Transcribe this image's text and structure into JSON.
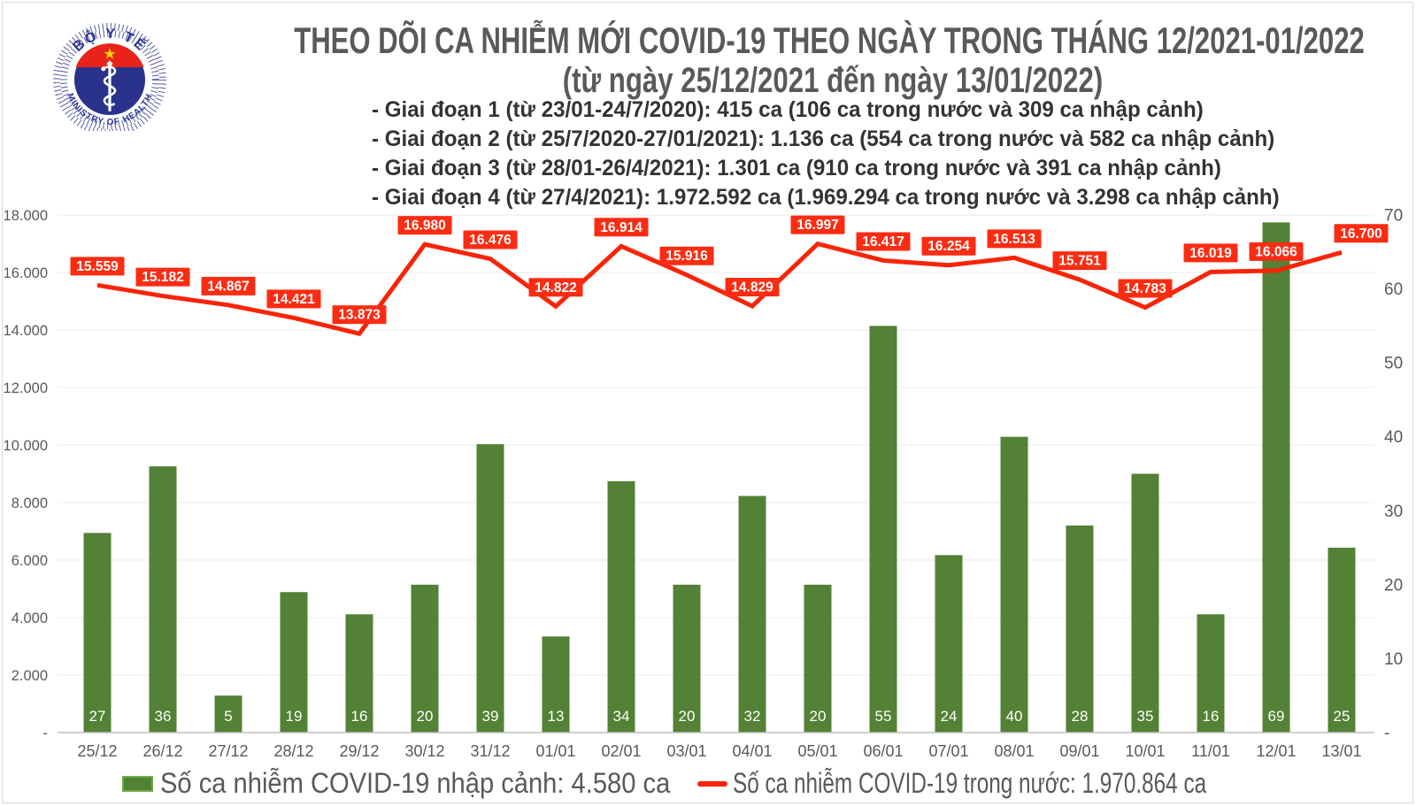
{
  "logo": {
    "top_text": "BỘ Y TẾ",
    "bottom_text": "MINISTRY OF HEALTH"
  },
  "title": "THEO DÕI CA NHIỄM MỚI COVID-19 THEO NGÀY TRONG THÁNG 12/2021-01/2022",
  "subtitle": "(từ ngày 25/12/2021 đến ngày 13/01/2022)",
  "phases": [
    "- Giai đoạn 1 (từ 23/01-24/7/2020): 415 ca (106 ca trong nước và 309 ca nhập cảnh)",
    "- Giai đoạn 2 (từ 25/7/2020-27/01/2021): 1.136 ca (554 ca trong nước và 582 ca nhập cảnh)",
    "- Giai đoạn 3 (từ 28/01-26/4/2021): 1.301 ca (910 ca trong nước và 391 ca nhập cảnh)",
    "- Giai đoạn 4 (từ 27/4/2021): 1.972.592 ca (1.969.294 ca trong nước và 3.298 ca nhập cảnh)"
  ],
  "chart_data": {
    "type": "bar+line combo",
    "categories": [
      "25/12",
      "26/12",
      "27/12",
      "28/12",
      "29/12",
      "30/12",
      "31/12",
      "01/01",
      "02/01",
      "03/01",
      "04/01",
      "05/01",
      "06/01",
      "07/01",
      "08/01",
      "09/01",
      "10/01",
      "11/01",
      "12/01",
      "13/01"
    ],
    "series": [
      {
        "name": "Số ca nhiễm COVID-19 nhập cảnh",
        "type": "bar",
        "axis": "right",
        "color": "#538135",
        "values": [
          27,
          36,
          5,
          19,
          16,
          20,
          39,
          13,
          34,
          20,
          32,
          20,
          55,
          24,
          40,
          28,
          35,
          16,
          69,
          25
        ],
        "point_labels": [
          "27",
          "36",
          "5",
          "19",
          "16",
          "20",
          "39",
          "13",
          "34",
          "20",
          "32",
          "20",
          "55",
          "24",
          "40",
          "28",
          "35",
          "16",
          "69",
          "25"
        ]
      },
      {
        "name": "Số ca nhiễm COVID-19 trong nước",
        "type": "line",
        "axis": "left",
        "color": "#f92408",
        "label_bg": "#fc2c13",
        "values": [
          15559,
          15182,
          14867,
          14421,
          13873,
          16980,
          16476,
          14822,
          16914,
          15916,
          14829,
          16997,
          16417,
          16254,
          16513,
          15751,
          14783,
          16019,
          16066,
          16700
        ],
        "point_labels": [
          "15.559",
          "15.182",
          "14.867",
          "14.421",
          "13.873",
          "16.980",
          "16.476",
          "14.822",
          "16.914",
          "15.916",
          "14.829",
          "16.997",
          "16.417",
          "16.254",
          "16.513",
          "15.751",
          "14.783",
          "16.019",
          "16.066",
          "16.700"
        ]
      }
    ],
    "left_axis": {
      "min": 0,
      "max": 18000,
      "step": 2000,
      "tick_labels": [
        "-",
        "2.000",
        "4.000",
        "6.000",
        "8.000",
        "10.000",
        "12.000",
        "14.000",
        "16.000",
        "18.000"
      ]
    },
    "right_axis": {
      "min": 0,
      "max": 70,
      "step": 10,
      "tick_labels": [
        "-",
        "10",
        "20",
        "30",
        "40",
        "50",
        "60",
        "70"
      ]
    },
    "grid": true,
    "legend_position": "bottom"
  },
  "legend": [
    {
      "swatch": "bar",
      "label": "Số ca nhiễm COVID-19 nhập cảnh: 4.580 ca"
    },
    {
      "swatch": "line",
      "label": "Số ca nhiễm COVID-19 trong nước: 1.970.864 ca"
    }
  ]
}
